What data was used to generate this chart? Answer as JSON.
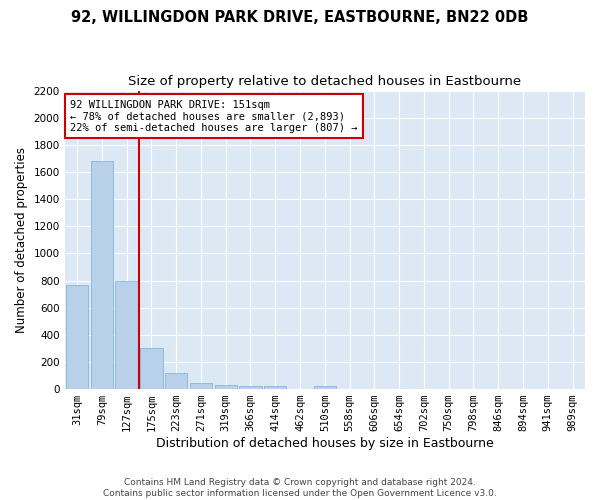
{
  "title": "92, WILLINGDON PARK DRIVE, EASTBOURNE, BN22 0DB",
  "subtitle": "Size of property relative to detached houses in Eastbourne",
  "xlabel": "Distribution of detached houses by size in Eastbourne",
  "ylabel": "Number of detached properties",
  "bar_color": "#b8d0ea",
  "bar_edge_color": "#7aaed6",
  "background_color": "#dce9f5",
  "grid_color": "#ffffff",
  "annotation_box_color": "#cc0000",
  "property_line_color": "#cc0000",
  "fig_background_color": "#ffffff",
  "categories": [
    "31sqm",
    "79sqm",
    "127sqm",
    "175sqm",
    "223sqm",
    "271sqm",
    "319sqm",
    "366sqm",
    "414sqm",
    "462sqm",
    "510sqm",
    "558sqm",
    "606sqm",
    "654sqm",
    "702sqm",
    "750sqm",
    "798sqm",
    "846sqm",
    "894sqm",
    "941sqm",
    "989sqm"
  ],
  "values": [
    770,
    1680,
    800,
    305,
    115,
    45,
    32,
    25,
    20,
    0,
    20,
    0,
    0,
    0,
    0,
    0,
    0,
    0,
    0,
    0,
    0
  ],
  "ylim": [
    0,
    2200
  ],
  "yticks": [
    0,
    200,
    400,
    600,
    800,
    1000,
    1200,
    1400,
    1600,
    1800,
    2000,
    2200
  ],
  "property_line_x": 2.5,
  "annotation_text": "92 WILLINGDON PARK DRIVE: 151sqm\n← 78% of detached houses are smaller (2,893)\n22% of semi-detached houses are larger (807) →",
  "footer_text": "Contains HM Land Registry data © Crown copyright and database right 2024.\nContains public sector information licensed under the Open Government Licence v3.0.",
  "title_fontsize": 10.5,
  "subtitle_fontsize": 9.5,
  "xlabel_fontsize": 9,
  "ylabel_fontsize": 8.5,
  "tick_fontsize": 7.5,
  "annotation_fontsize": 7.5,
  "footer_fontsize": 6.5
}
